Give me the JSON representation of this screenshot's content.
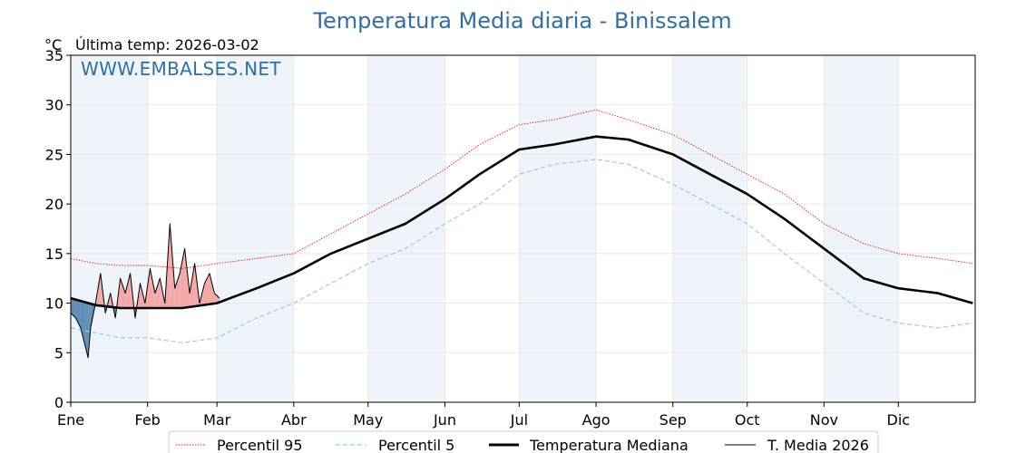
{
  "chart_data": {
    "type": "line",
    "title": "Temperatura Media diaria - Binissalem",
    "unit_label": "°C",
    "last_temp_label": "Última temp: 2026-03-02",
    "watermark": "WWW.EMBALSES.NET",
    "xlim": [
      0,
      365
    ],
    "ylim": [
      0,
      35
    ],
    "y_ticks": [
      0,
      5,
      10,
      15,
      20,
      25,
      30,
      35
    ],
    "x_tick_positions": [
      0,
      31,
      59,
      90,
      120,
      151,
      181,
      212,
      243,
      273,
      304,
      334
    ],
    "x_tick_labels": [
      "Ene",
      "Feb",
      "Mar",
      "Abr",
      "May",
      "Jun",
      "Jul",
      "Ago",
      "Sep",
      "Oct",
      "Nov",
      "Dic"
    ],
    "grid": true,
    "shaded_months": "alternate months shaded light blue",
    "legend_position": "bottom-center",
    "colors": {
      "p95": "#e41a1c",
      "p5": "#9fcde0",
      "median": "#000000",
      "current": "#000000",
      "above_fill": "#f4a8a8",
      "below_fill": "#5f8fb4",
      "month_band": "#eef4fa",
      "title": "#2f6fa6"
    },
    "series": [
      {
        "key": "p95",
        "name": "Percentil 95",
        "style": "dotted-red",
        "x": [
          0,
          10,
          20,
          31,
          45,
          59,
          75,
          90,
          105,
          120,
          135,
          151,
          165,
          181,
          195,
          212,
          225,
          243,
          258,
          273,
          288,
          304,
          320,
          334,
          350,
          364
        ],
        "y": [
          14.5,
          14.0,
          13.8,
          13.8,
          13.5,
          14.0,
          14.5,
          15.0,
          17.0,
          19.0,
          21.0,
          23.5,
          26.0,
          28.0,
          28.5,
          29.5,
          28.5,
          27.0,
          25.0,
          23.0,
          21.0,
          18.0,
          16.0,
          15.0,
          14.5,
          14.0
        ]
      },
      {
        "key": "p5",
        "name": "Percentil 5",
        "style": "dashed-lightblue",
        "x": [
          0,
          10,
          20,
          31,
          45,
          59,
          75,
          90,
          105,
          120,
          135,
          151,
          165,
          181,
          195,
          212,
          225,
          243,
          258,
          273,
          288,
          304,
          320,
          334,
          350,
          364
        ],
        "y": [
          7.5,
          7.0,
          6.5,
          6.5,
          6.0,
          6.5,
          8.5,
          10.0,
          12.0,
          14.0,
          15.5,
          18.0,
          20.0,
          23.0,
          24.0,
          24.5,
          24.0,
          22.0,
          20.0,
          18.0,
          15.0,
          12.0,
          9.0,
          8.0,
          7.5,
          8.0
        ]
      },
      {
        "key": "median",
        "name": "Temperatura Mediana",
        "style": "thick-black",
        "x": [
          0,
          10,
          20,
          31,
          45,
          59,
          75,
          90,
          105,
          120,
          135,
          151,
          165,
          181,
          195,
          212,
          225,
          243,
          258,
          273,
          288,
          304,
          320,
          334,
          350,
          364
        ],
        "y": [
          10.5,
          9.8,
          9.5,
          9.5,
          9.5,
          10.0,
          11.5,
          13.0,
          15.0,
          16.5,
          18.0,
          20.5,
          23.0,
          25.5,
          26.0,
          26.8,
          26.5,
          25.0,
          23.0,
          21.0,
          18.5,
          15.5,
          12.5,
          11.5,
          11.0,
          10.0
        ]
      },
      {
        "key": "current",
        "name": "T. Media 2026",
        "style": "thin-black",
        "x": [
          0,
          2,
          4,
          6,
          7,
          8,
          10,
          12,
          14,
          16,
          18,
          20,
          22,
          24,
          26,
          28,
          30,
          32,
          34,
          36,
          38,
          40,
          42,
          44,
          46,
          48,
          50,
          52,
          54,
          56,
          58,
          60
        ],
        "y": [
          9.0,
          8.5,
          7.5,
          5.5,
          4.5,
          7.5,
          10.0,
          13.0,
          9.0,
          11.0,
          8.5,
          12.5,
          11.0,
          13.0,
          8.5,
          12.0,
          10.0,
          13.5,
          11.0,
          12.5,
          10.0,
          18.0,
          11.5,
          13.0,
          15.5,
          11.0,
          14.0,
          10.0,
          12.0,
          13.0,
          11.0,
          10.5
        ]
      }
    ]
  }
}
